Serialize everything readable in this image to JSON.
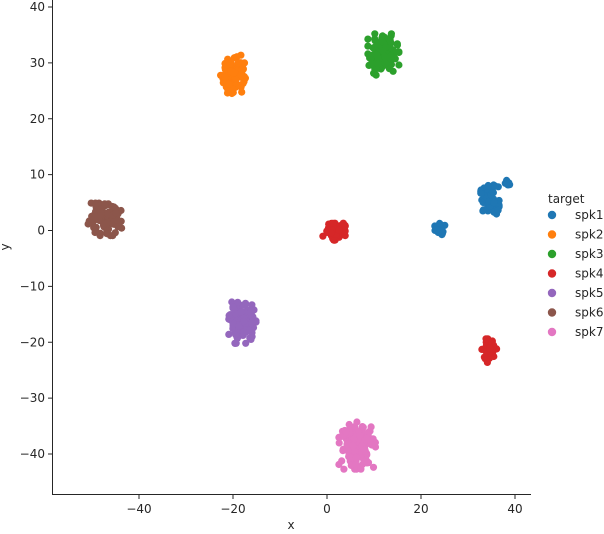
{
  "chart_data": {
    "type": "scatter",
    "title": "",
    "xlabel": "x",
    "ylabel": "y",
    "xlim": [
      -57,
      43
    ],
    "ylim": [
      -47,
      41
    ],
    "xticks": [
      -40,
      -20,
      0,
      20,
      40
    ],
    "yticks": [
      -40,
      -30,
      -20,
      -10,
      0,
      10,
      20,
      30,
      40
    ],
    "grid": false,
    "legend": {
      "title": "target",
      "placement": "right"
    },
    "series": [
      {
        "name": "spk1",
        "color": "#1f77b4",
        "clusters": [
          {
            "center": [
              34.5,
              5.5
            ],
            "spread": [
              1.6,
              2.0
            ],
            "n": 90
          },
          {
            "center": [
              24.0,
              0.3
            ],
            "spread": [
              0.8,
              0.9
            ],
            "n": 25
          },
          {
            "center": [
              38.5,
              8.5
            ],
            "spread": [
              0.5,
              0.4
            ],
            "n": 8
          }
        ]
      },
      {
        "name": "spk2",
        "color": "#ff7f0e",
        "clusters": [
          {
            "center": [
              -20.0,
              28.0
            ],
            "spread": [
              2.0,
              2.8
            ],
            "n": 120
          }
        ]
      },
      {
        "name": "spk3",
        "color": "#2ca02c",
        "clusters": [
          {
            "center": [
              12.0,
              31.5
            ],
            "spread": [
              2.5,
              2.8
            ],
            "n": 130
          }
        ]
      },
      {
        "name": "spk4",
        "color": "#d62728",
        "clusters": [
          {
            "center": [
              1.5,
              0.0
            ],
            "spread": [
              1.8,
              1.3
            ],
            "n": 60
          },
          {
            "center": [
              34.5,
              -21.5
            ],
            "spread": [
              1.2,
              1.6
            ],
            "n": 50
          }
        ]
      },
      {
        "name": "spk5",
        "color": "#9467bd",
        "clusters": [
          {
            "center": [
              -18.0,
              -16.5
            ],
            "spread": [
              2.2,
              2.8
            ],
            "n": 120
          }
        ]
      },
      {
        "name": "spk6",
        "color": "#8c564b",
        "clusters": [
          {
            "center": [
              -47.5,
              2.0
            ],
            "spread": [
              3.0,
              2.2
            ],
            "n": 120
          }
        ]
      },
      {
        "name": "spk7",
        "color": "#e377c2",
        "clusters": [
          {
            "center": [
              6.5,
              -38.5
            ],
            "spread": [
              3.0,
              3.2
            ],
            "n": 150
          }
        ]
      }
    ]
  }
}
